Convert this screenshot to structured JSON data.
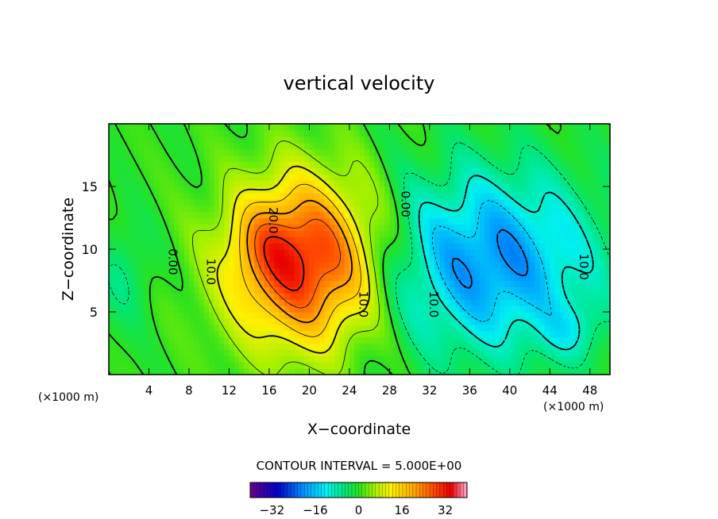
{
  "chart_data": {
    "type": "contour",
    "title": "vertical velocity",
    "xlabel": "X−coordinate",
    "ylabel": "Z−coordinate",
    "x_unit_left": "(×1000 m)",
    "x_unit_right": "(×1000 m)",
    "xlim": [
      0,
      50
    ],
    "ylim": [
      0,
      20
    ],
    "x_ticks": [
      4,
      8,
      12,
      16,
      20,
      24,
      28,
      32,
      36,
      40,
      44,
      48
    ],
    "y_ticks": [
      5,
      10,
      15
    ],
    "contour_interval_text": "CONTOUR INTERVAL =  5.000E+00",
    "contour_labels": [
      {
        "text": "20.0",
        "x": 16.0,
        "y": 12.3
      },
      {
        "text": "10.0",
        "x": 9.8,
        "y": 8.2
      },
      {
        "text": "10.0",
        "x": 25.0,
        "y": 5.6
      },
      {
        "text": "0.00",
        "x": 6.0,
        "y": 9.0
      },
      {
        "text": "0.00",
        "x": 29.2,
        "y": 13.6
      },
      {
        "text": "10.0",
        "x": 32.0,
        "y": 5.6
      },
      {
        "text": "10.0",
        "x": 47.0,
        "y": 8.6
      }
    ],
    "colorbar": {
      "min": -40,
      "max": 40,
      "tick_values": [
        -32,
        -16,
        0,
        16,
        32
      ],
      "tick_labels": [
        "−32",
        "−16",
        "0",
        "16",
        "32"
      ]
    },
    "fields": {
      "updraft": {
        "center_x": 19.5,
        "center_z": 9.0,
        "max_w": 32
      },
      "downdraft": {
        "center_x": 38.0,
        "center_z": 9.0,
        "min_w": -20
      }
    },
    "colors": {
      "positive_high": "#ff3000",
      "neutral": "#00dd30",
      "negative_low": "#00aaff"
    }
  }
}
